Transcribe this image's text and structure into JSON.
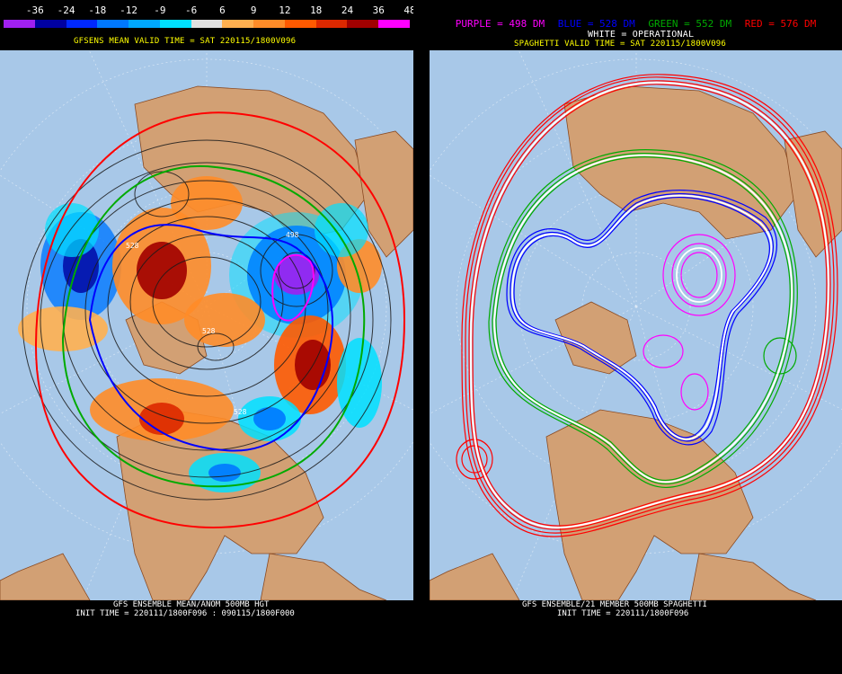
{
  "left": {
    "colorbar_labels": [
      "-36",
      "-24",
      "-18",
      "-12",
      "-9",
      "-6",
      "6",
      "9",
      "12",
      "18",
      "24",
      "36",
      "48"
    ],
    "colorbar_colors": [
      "#a020f0",
      "#0000a0",
      "#0028ff",
      "#0078ff",
      "#00a8ff",
      "#00e0ff",
      "#e0e0e0",
      "#ffb050",
      "#ff8c28",
      "#ff5a00",
      "#dc2800",
      "#a00000",
      "#ff00ff"
    ],
    "title": "GFSENS MEAN VALID TIME = SAT 220115/1800V096",
    "footer_line1": "GFS ENSEMBLE MEAN/ANOM 500MB HGT",
    "footer_line2": "INIT TIME = 220111/1800F096 : 090115/1800F000",
    "contour_labels": [
      "528",
      "498",
      "528",
      "528"
    ]
  },
  "right": {
    "legend": {
      "purple": "PURPLE = 498 DM",
      "blue": "BLUE = 528 DM",
      "green": "GREEN = 552 DM",
      "red": "RED = 576 DM"
    },
    "operational": "WHITE = OPERATIONAL",
    "title": "SPAGHETTI VALID TIME = SAT 220115/1800V096",
    "footer_line1": "GFS ENSEMBLE/21 MEMBER 500MB SPAGHETTI",
    "footer_line2": "INIT TIME = 220111/1800F096"
  },
  "colors": {
    "ocean": "#a8c8e8",
    "land": "#d2a074",
    "border": "#8a4a22",
    "title_yellow": "#ffff00",
    "purple": "#ff00ff",
    "blue": "#0000ff",
    "green": "#00aa00",
    "red": "#ff0000"
  }
}
